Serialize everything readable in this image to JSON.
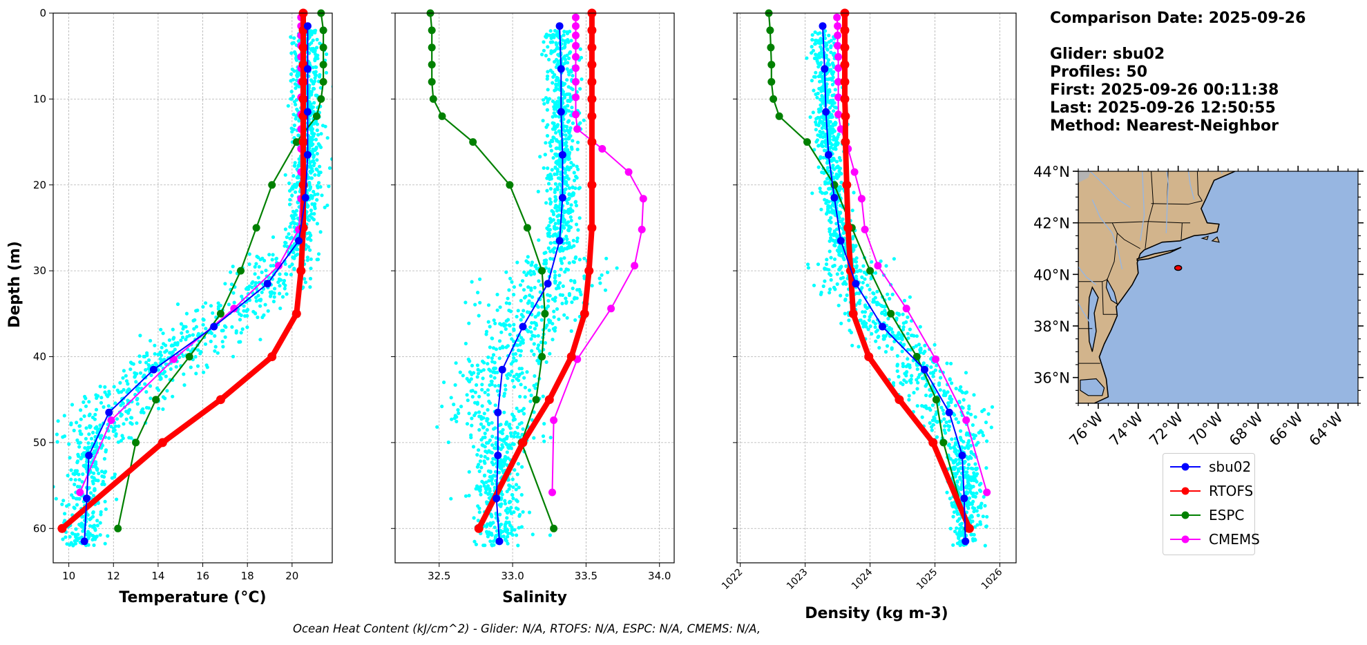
{
  "info": {
    "comparison_date": "Comparison Date: 2025-09-26",
    "glider": "Glider: sbu02",
    "profiles": "Profiles: 50",
    "first": "First: 2025-09-26 00:11:38",
    "last": "Last: 2025-09-26 12:50:55",
    "method": "Method: Nearest-Neighbor"
  },
  "footer": "Ocean Heat Content (kJ/cm^2) - Glider: N/A,  RTOFS: N/A,  ESPC: N/A,  CMEMS: N/A,",
  "colors": {
    "sbu02": "#0000ff",
    "RTOFS": "#ff0000",
    "ESPC": "#008000",
    "CMEMS": "#ff00ff",
    "raw": "#00ffff",
    "land": "#d2b48c",
    "ocean": "#97b6e1",
    "lakes": "#97b6e1"
  },
  "legend": [
    {
      "name": "sbu02",
      "color": "#0000ff"
    },
    {
      "name": "RTOFS",
      "color": "#ff0000"
    },
    {
      "name": "ESPC",
      "color": "#008000"
    },
    {
      "name": "CMEMS",
      "color": "#ff00ff"
    }
  ],
  "chart_data": [
    {
      "type": "line",
      "xlabel": "Temperature (°C)",
      "ylabel": "Depth (m)",
      "xlim": [
        9.3,
        21.8
      ],
      "ylim": [
        64,
        0
      ],
      "xticks": [
        10,
        12,
        14,
        16,
        18,
        20
      ],
      "yticks": [
        0,
        10,
        20,
        30,
        40,
        50,
        60
      ],
      "grid": true,
      "raw_glider_scatter": "sbu02 individual profile points (cyan)",
      "series": [
        {
          "name": "sbu02",
          "depth": [
            1.5,
            6.5,
            11.5,
            16.5,
            21.5,
            26.5,
            31.5,
            36.5,
            41.5,
            46.5,
            51.5,
            56.5,
            61.5
          ],
          "values": [
            20.7,
            20.7,
            20.7,
            20.7,
            20.6,
            20.3,
            18.9,
            16.5,
            13.8,
            11.8,
            10.9,
            10.8,
            10.7
          ]
        },
        {
          "name": "RTOFS",
          "depth": [
            0,
            2,
            4,
            6,
            8,
            10,
            12,
            15,
            20,
            25,
            30,
            35,
            40,
            45,
            50,
            60
          ],
          "values": [
            20.5,
            20.5,
            20.5,
            20.5,
            20.5,
            20.5,
            20.5,
            20.5,
            20.5,
            20.5,
            20.4,
            20.2,
            19.1,
            16.8,
            14.2,
            9.7
          ]
        },
        {
          "name": "ESPC",
          "depth": [
            0,
            2,
            4,
            6,
            8,
            10,
            12,
            15,
            20,
            25,
            30,
            35,
            40,
            45,
            50,
            60
          ],
          "values": [
            21.3,
            21.4,
            21.4,
            21.4,
            21.4,
            21.3,
            21.1,
            20.2,
            19.1,
            18.4,
            17.7,
            16.8,
            15.4,
            13.9,
            13.0,
            12.2
          ]
        },
        {
          "name": "CMEMS",
          "depth": [
            0.5,
            1.5,
            2.6,
            3.8,
            5.1,
            6.4,
            8.0,
            9.8,
            11.8,
            13.5,
            15.8,
            18.5,
            21.6,
            25.2,
            29.4,
            34.4,
            40.3,
            47.4,
            55.8
          ],
          "values": [
            20.4,
            20.4,
            20.4,
            20.4,
            20.4,
            20.4,
            20.4,
            20.4,
            20.4,
            20.4,
            20.4,
            20.4,
            20.4,
            20.3,
            19.4,
            17.4,
            14.7,
            11.9,
            10.5
          ]
        }
      ]
    },
    {
      "type": "line",
      "xlabel": "Salinity",
      "ylabel": "",
      "xlim": [
        32.2,
        34.1
      ],
      "ylim": [
        64,
        0
      ],
      "xticks": [
        32.5,
        33.0,
        33.5,
        34.0
      ],
      "yticks": [
        0,
        10,
        20,
        30,
        40,
        50,
        60
      ],
      "grid": true,
      "raw_glider_scatter": "sbu02 individual profile points (cyan)",
      "series": [
        {
          "name": "sbu02",
          "depth": [
            1.5,
            6.5,
            11.5,
            16.5,
            21.5,
            26.5,
            31.5,
            36.5,
            41.5,
            46.5,
            51.5,
            56.5,
            61.5
          ],
          "values": [
            33.32,
            33.33,
            33.33,
            33.34,
            33.34,
            33.32,
            33.24,
            33.07,
            32.93,
            32.9,
            32.9,
            32.89,
            32.91
          ]
        },
        {
          "name": "RTOFS",
          "depth": [
            0,
            2,
            4,
            6,
            8,
            10,
            12,
            15,
            20,
            25,
            30,
            35,
            40,
            45,
            50,
            60
          ],
          "values": [
            33.54,
            33.54,
            33.54,
            33.54,
            33.54,
            33.54,
            33.54,
            33.54,
            33.54,
            33.54,
            33.52,
            33.49,
            33.4,
            33.25,
            33.07,
            32.77
          ]
        },
        {
          "name": "ESPC",
          "depth": [
            0,
            2,
            4,
            6,
            8,
            10,
            12,
            15,
            20,
            25,
            30,
            35,
            40,
            45,
            50,
            60
          ],
          "values": [
            32.44,
            32.45,
            32.45,
            32.45,
            32.45,
            32.46,
            32.52,
            32.73,
            32.98,
            33.1,
            33.2,
            33.22,
            33.2,
            33.16,
            33.06,
            33.28
          ]
        },
        {
          "name": "CMEMS",
          "depth": [
            0.5,
            1.5,
            2.6,
            3.8,
            5.1,
            6.4,
            8.0,
            9.8,
            11.8,
            13.5,
            15.8,
            18.5,
            21.6,
            25.2,
            29.4,
            34.4,
            40.3,
            47.4,
            55.8
          ],
          "values": [
            33.43,
            33.43,
            33.43,
            33.43,
            33.43,
            33.43,
            33.43,
            33.43,
            33.43,
            33.44,
            33.61,
            33.79,
            33.89,
            33.88,
            33.83,
            33.67,
            33.44,
            33.28,
            33.27
          ]
        }
      ]
    },
    {
      "type": "line",
      "xlabel": "Density (kg m-3)",
      "ylabel": "",
      "xlim": [
        1021.95,
        1026.25
      ],
      "ylim": [
        64,
        0
      ],
      "xticks": [
        1022,
        1023,
        1024,
        1025,
        1026
      ],
      "yticks": [
        0,
        10,
        20,
        30,
        40,
        50,
        60
      ],
      "grid": true,
      "raw_glider_scatter": "sbu02 individual profile points (cyan)",
      "series": [
        {
          "name": "sbu02",
          "depth": [
            1.5,
            6.5,
            11.5,
            16.5,
            21.5,
            26.5,
            31.5,
            36.5,
            41.5,
            46.5,
            51.5,
            56.5,
            61.5
          ],
          "values": [
            1023.27,
            1023.3,
            1023.32,
            1023.36,
            1023.45,
            1023.55,
            1023.78,
            1024.19,
            1024.84,
            1025.22,
            1025.42,
            1025.45,
            1025.47
          ]
        },
        {
          "name": "RTOFS",
          "depth": [
            0,
            2,
            4,
            6,
            8,
            10,
            12,
            15,
            20,
            25,
            30,
            35,
            40,
            45,
            50,
            60
          ],
          "values": [
            1023.61,
            1023.61,
            1023.61,
            1023.61,
            1023.61,
            1023.61,
            1023.62,
            1023.62,
            1023.64,
            1023.66,
            1023.7,
            1023.74,
            1023.98,
            1024.45,
            1024.97,
            1025.53
          ]
        },
        {
          "name": "ESPC",
          "depth": [
            0,
            2,
            4,
            6,
            8,
            10,
            12,
            15,
            20,
            25,
            30,
            35,
            40,
            45,
            50,
            60
          ],
          "values": [
            1022.44,
            1022.46,
            1022.47,
            1022.48,
            1022.48,
            1022.51,
            1022.6,
            1023.03,
            1023.45,
            1023.72,
            1024.0,
            1024.32,
            1024.72,
            1025.02,
            1025.13,
            1025.5
          ]
        },
        {
          "name": "CMEMS",
          "depth": [
            0.5,
            1.5,
            2.6,
            3.8,
            5.1,
            6.4,
            8.0,
            9.8,
            11.8,
            13.5,
            15.8,
            18.5,
            21.6,
            25.2,
            29.4,
            34.4,
            40.3,
            47.4,
            55.8
          ],
          "values": [
            1023.49,
            1023.5,
            1023.5,
            1023.5,
            1023.51,
            1023.51,
            1023.51,
            1023.51,
            1023.51,
            1023.55,
            1023.66,
            1023.76,
            1023.87,
            1023.92,
            1024.12,
            1024.56,
            1025.01,
            1025.48,
            1025.8
          ]
        }
      ]
    }
  ],
  "map": {
    "lat_labels": [
      "44°N",
      "42°N",
      "40°N",
      "38°N",
      "36°N"
    ],
    "lon_labels": [
      "76°W",
      "74°W",
      "72°W",
      "70°W",
      "68°W",
      "66°W",
      "64°W"
    ],
    "lat_range": [
      35,
      44
    ],
    "lon_range": [
      -77,
      -63
    ],
    "glider_position": {
      "lon": -72.0,
      "lat": 40.25
    }
  }
}
